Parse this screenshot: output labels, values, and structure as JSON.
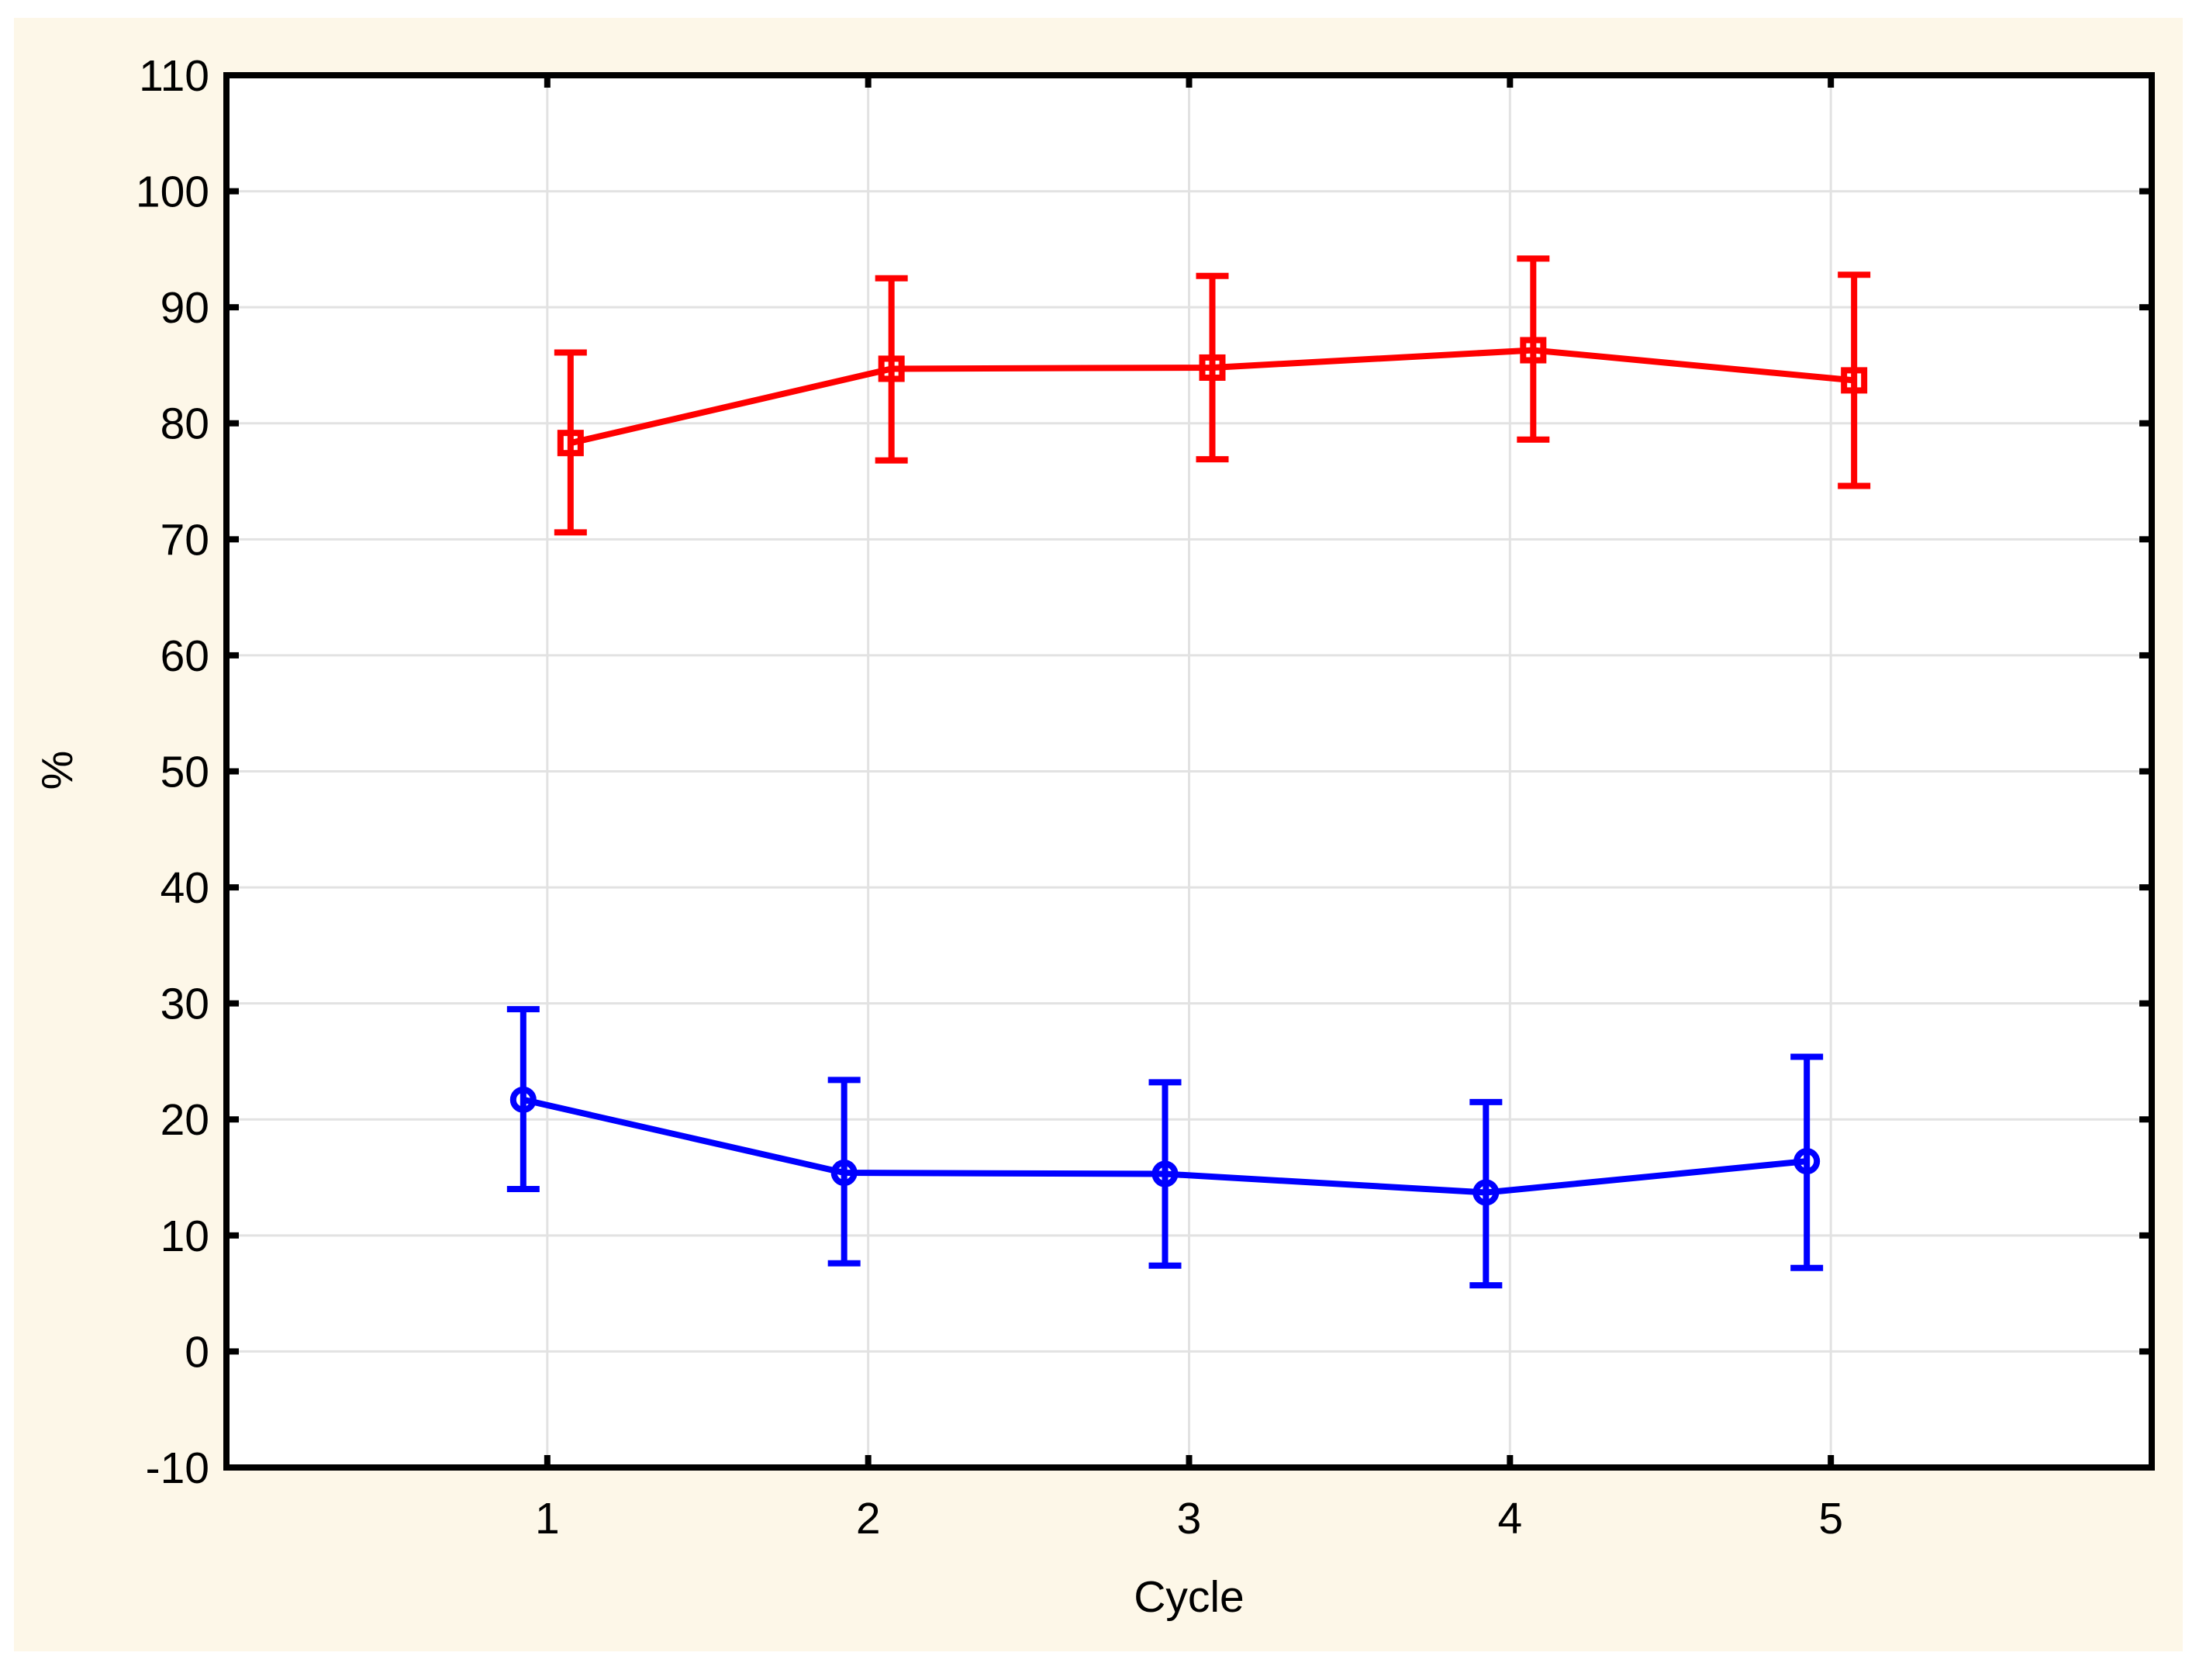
{
  "chart_data": {
    "type": "line",
    "title": "",
    "xlabel": "Cycle",
    "ylabel": "%",
    "x": [
      1,
      2,
      3,
      4,
      5
    ],
    "xlim": [
      0,
      6
    ],
    "ylim": [
      -10,
      110
    ],
    "xticks": [
      1,
      2,
      3,
      4,
      5
    ],
    "yticks": [
      110,
      100,
      90,
      80,
      70,
      60,
      50,
      40,
      30,
      20,
      10,
      0,
      -10
    ],
    "grid": true,
    "legend_position": "none",
    "error_bars": "whiskers with caps",
    "series": [
      {
        "name": "red_squares",
        "marker": "square",
        "color": "#FF0000",
        "values": [
          78.3,
          84.7,
          84.8,
          86.3,
          83.7
        ],
        "err_low": [
          70.6,
          76.8,
          76.9,
          78.6,
          74.6
        ],
        "err_high": [
          86.1,
          92.5,
          92.7,
          94.2,
          92.8
        ]
      },
      {
        "name": "blue_circles",
        "marker": "circle",
        "color": "#0000FF",
        "values": [
          21.7,
          15.4,
          15.3,
          13.7,
          16.4
        ],
        "err_low": [
          14.0,
          7.6,
          7.4,
          5.7,
          7.2
        ],
        "err_high": [
          29.5,
          23.4,
          23.2,
          21.5,
          25.4
        ]
      }
    ]
  },
  "palette": {
    "page_background": "#FFFFFF",
    "panel_background": "#FDF7E8",
    "plot_background": "#FFFFFF",
    "grid_color": "#E2E2E2",
    "frame_color": "#000000",
    "text_color": "#000000"
  }
}
